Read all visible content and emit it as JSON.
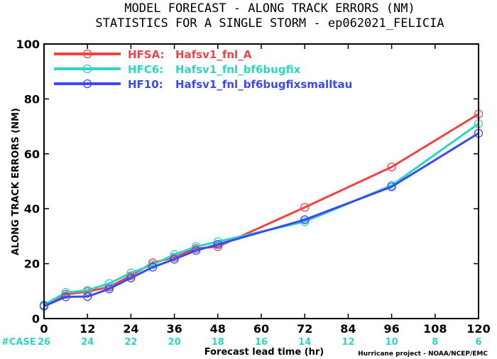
{
  "chart_data": {
    "type": "line",
    "title_line1": "MODEL FORECAST - ALONG TRACK ERRORS (NM)",
    "title_line2": "STATISTICS FOR A SINGLE STORM - ep062021_FELICIA",
    "xlabel": "Forecast lead time (hr)",
    "ylabel": "ALONG TRACK ERRORS (NM)",
    "xlim": [
      0,
      120
    ],
    "ylim": [
      0,
      100
    ],
    "x_ticks": [
      "0",
      "12",
      "24",
      "36",
      "48",
      "60",
      "72",
      "84",
      "96",
      "108",
      "120"
    ],
    "y_ticks": [
      "0",
      "20",
      "40",
      "60",
      "80",
      "100"
    ],
    "case_label": "#CASE",
    "case_counts": [
      "26",
      "24",
      "22",
      "20",
      "18",
      "16",
      "14",
      "12",
      "10",
      "8",
      "6"
    ],
    "credit": "Hurricane project - NOAA/NCEP/EMC",
    "grid": false,
    "legend_placement": "top-left",
    "series": [
      {
        "name": "HFSA:",
        "label": "Hafsv1_fnl_A",
        "color": "#ee4444",
        "x": [
          0,
          6,
          12,
          18,
          24,
          30,
          36,
          42,
          48,
          72,
          96,
          120
        ],
        "y": [
          4.8,
          8.8,
          9.8,
          11.5,
          15.6,
          20.3,
          22.3,
          25.5,
          26.2,
          40.5,
          55.2,
          74.5
        ]
      },
      {
        "name": "HFC6:",
        "label": "Hafsv1_fnl_bf6bugfix",
        "color": "#2fd4c4",
        "x": [
          0,
          6,
          12,
          18,
          24,
          30,
          36,
          42,
          48,
          72,
          96,
          120
        ],
        "y": [
          5.0,
          9.5,
          10.3,
          12.8,
          16.6,
          19.6,
          23.3,
          26.2,
          28.0,
          35.3,
          48.5,
          71.0
        ]
      },
      {
        "name": "HF10:",
        "label": "Hafsv1_fnl_bf6bugfixsmalltau",
        "color": "#3a4af0",
        "x": [
          0,
          6,
          12,
          18,
          24,
          30,
          36,
          42,
          48,
          72,
          96,
          120
        ],
        "y": [
          4.5,
          7.9,
          8.0,
          10.8,
          14.8,
          18.7,
          21.6,
          24.8,
          27.0,
          36.0,
          48.0,
          67.5
        ]
      }
    ]
  },
  "colors": {
    "case_color": "#2fd4c4",
    "axis": "#000000",
    "background": "#ffffff"
  }
}
